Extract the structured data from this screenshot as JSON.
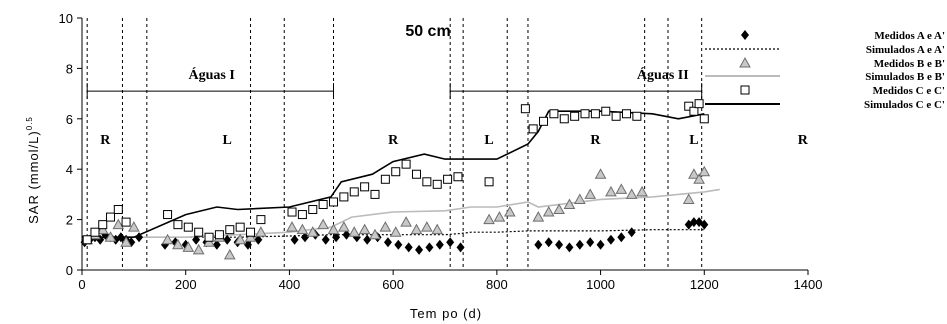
{
  "chart_data": {
    "type": "scatter",
    "title": "50 cm",
    "xlabel": "Tem po (d)",
    "ylabel": "SAR (mmol/L)",
    "ylabel_sup": "0.5",
    "xlim": [
      0,
      1400
    ],
    "ylim": [
      0,
      10
    ],
    "xticks": [
      0,
      200,
      400,
      600,
      800,
      1000,
      1200,
      1400
    ],
    "yticks": [
      0,
      2,
      4,
      6,
      8,
      10
    ],
    "phase_lines": [
      10,
      78,
      125,
      325,
      390,
      485,
      710,
      735,
      820,
      860,
      1085,
      1130,
      1195
    ],
    "phase_labels": [
      {
        "text": "R",
        "x": 45,
        "y": 5.0
      },
      {
        "text": "L",
        "x": 280,
        "y": 5.0
      },
      {
        "text": "R",
        "x": 600,
        "y": 5.0
      },
      {
        "text": "L",
        "x": 785,
        "y": 5.0
      },
      {
        "text": "R",
        "x": 990,
        "y": 5.0
      },
      {
        "text": "L",
        "x": 1180,
        "y": 5.0
      },
      {
        "text": "R",
        "x": 1390,
        "y": 5.0
      }
    ],
    "periods": [
      {
        "label": "Águas I",
        "x_start": 10,
        "x_end": 485,
        "y": 7.1,
        "label_x": 250
      },
      {
        "label": "Águas II",
        "x_start": 710,
        "x_end": 1195,
        "y": 7.1,
        "label_x": 1120
      }
    ],
    "legend_position": "right",
    "series": [
      {
        "name": "Medidos A e A'",
        "kind": "points",
        "marker": "diamond",
        "x": [
          5,
          15,
          25,
          35,
          45,
          55,
          65,
          75,
          85,
          95,
          110,
          160,
          180,
          200,
          220,
          240,
          260,
          280,
          300,
          320,
          340,
          410,
          430,
          450,
          470,
          490,
          510,
          530,
          550,
          570,
          590,
          610,
          630,
          650,
          670,
          690,
          710,
          730,
          880,
          900,
          920,
          940,
          960,
          980,
          1000,
          1020,
          1040,
          1060,
          1170,
          1180,
          1190,
          1200
        ],
        "y": [
          1.1,
          1.2,
          1.3,
          1.2,
          1.4,
          1.3,
          1.2,
          1.3,
          1.2,
          1.1,
          1.3,
          1.0,
          1.1,
          1.0,
          1.2,
          1.1,
          1.0,
          1.2,
          1.1,
          1.0,
          1.2,
          1.2,
          1.3,
          1.4,
          1.2,
          1.3,
          1.4,
          1.3,
          1.2,
          1.3,
          1.1,
          1.0,
          0.9,
          0.8,
          0.9,
          1.0,
          1.1,
          0.9,
          1.0,
          1.1,
          1.0,
          0.9,
          1.0,
          1.1,
          1.0,
          1.2,
          1.3,
          1.5,
          1.8,
          1.9,
          1.9,
          1.8
        ],
        "color": "#000000"
      },
      {
        "name": "Simulados A e A'",
        "kind": "line",
        "style": "dotted",
        "x": [
          0,
          60,
          100,
          200,
          300,
          400,
          480,
          500,
          600,
          700,
          730,
          750,
          800,
          860,
          900,
          1000,
          1100,
          1200
        ],
        "y": [
          1.2,
          1.3,
          1.3,
          1.3,
          1.3,
          1.35,
          1.4,
          1.4,
          1.4,
          1.4,
          1.45,
          1.5,
          1.5,
          1.55,
          1.55,
          1.55,
          1.6,
          1.6
        ],
        "color": "#000000"
      },
      {
        "name": "Medidos B e B'",
        "kind": "points",
        "marker": "triangle",
        "x": [
          10,
          25,
          40,
          55,
          70,
          85,
          100,
          165,
          185,
          205,
          225,
          245,
          265,
          285,
          305,
          325,
          345,
          405,
          425,
          445,
          465,
          485,
          505,
          525,
          545,
          565,
          585,
          605,
          625,
          645,
          665,
          685,
          785,
          805,
          825,
          880,
          900,
          920,
          940,
          960,
          980,
          1000,
          1020,
          1040,
          1060,
          1080,
          1170,
          1180,
          1190,
          1200
        ],
        "y": [
          1.2,
          1.4,
          1.6,
          1.3,
          1.8,
          1.1,
          1.7,
          1.2,
          1.0,
          0.9,
          0.8,
          1.1,
          1.3,
          0.6,
          1.2,
          1.3,
          1.5,
          1.7,
          1.6,
          1.5,
          1.8,
          1.6,
          1.7,
          1.5,
          1.6,
          1.4,
          1.7,
          1.5,
          1.9,
          1.6,
          1.7,
          1.6,
          2.0,
          2.1,
          2.3,
          2.1,
          2.3,
          2.4,
          2.6,
          2.8,
          3.0,
          3.8,
          3.1,
          3.2,
          3.0,
          3.1,
          2.8,
          3.8,
          3.6,
          3.9
        ],
        "color": "#999999"
      },
      {
        "name": "Simulados B e B'",
        "kind": "line",
        "style": "solid",
        "x": [
          0,
          60,
          100,
          200,
          300,
          400,
          480,
          520,
          600,
          700,
          750,
          800,
          860,
          880,
          1000,
          1100,
          1200,
          1230
        ],
        "y": [
          1.2,
          1.3,
          1.3,
          1.3,
          1.4,
          1.5,
          1.7,
          2.1,
          2.3,
          2.35,
          2.5,
          2.5,
          2.7,
          2.5,
          2.8,
          2.9,
          3.1,
          3.2
        ],
        "color": "#bbbbbb"
      },
      {
        "name": "Medidos C e C'",
        "kind": "points",
        "marker": "square",
        "x": [
          10,
          25,
          40,
          55,
          70,
          85,
          165,
          185,
          205,
          225,
          245,
          265,
          285,
          305,
          325,
          345,
          405,
          425,
          445,
          465,
          485,
          505,
          525,
          545,
          565,
          585,
          605,
          625,
          645,
          665,
          685,
          705,
          725,
          785,
          855,
          870,
          890,
          910,
          930,
          950,
          970,
          990,
          1010,
          1030,
          1050,
          1070,
          1170,
          1180,
          1190,
          1200
        ],
        "y": [
          1.2,
          1.5,
          1.8,
          2.1,
          2.4,
          1.9,
          2.2,
          1.8,
          1.7,
          1.5,
          1.3,
          1.4,
          1.6,
          1.7,
          1.5,
          2.0,
          2.3,
          2.2,
          2.4,
          2.6,
          2.7,
          2.9,
          3.1,
          3.3,
          3.0,
          3.6,
          3.9,
          4.2,
          3.8,
          3.5,
          3.4,
          3.6,
          3.7,
          3.5,
          6.4,
          5.6,
          5.9,
          6.2,
          6.0,
          6.1,
          6.2,
          6.2,
          6.3,
          6.1,
          6.2,
          6.1,
          6.5,
          6.3,
          6.6,
          6.0
        ],
        "color": "#000000"
      },
      {
        "name": "Simulados C e C'",
        "kind": "line",
        "style": "solid",
        "x": [
          0,
          60,
          100,
          200,
          260,
          300,
          400,
          480,
          500,
          560,
          600,
          660,
          700,
          760,
          800,
          860,
          880,
          900,
          1000,
          1100,
          1150,
          1200
        ],
        "y": [
          1.3,
          1.3,
          1.3,
          2.2,
          2.5,
          2.4,
          2.5,
          2.9,
          3.5,
          3.8,
          4.3,
          4.6,
          4.4,
          4.4,
          4.4,
          5.0,
          5.5,
          6.3,
          6.3,
          6.2,
          6.0,
          6.2
        ],
        "color": "#000000"
      }
    ]
  }
}
